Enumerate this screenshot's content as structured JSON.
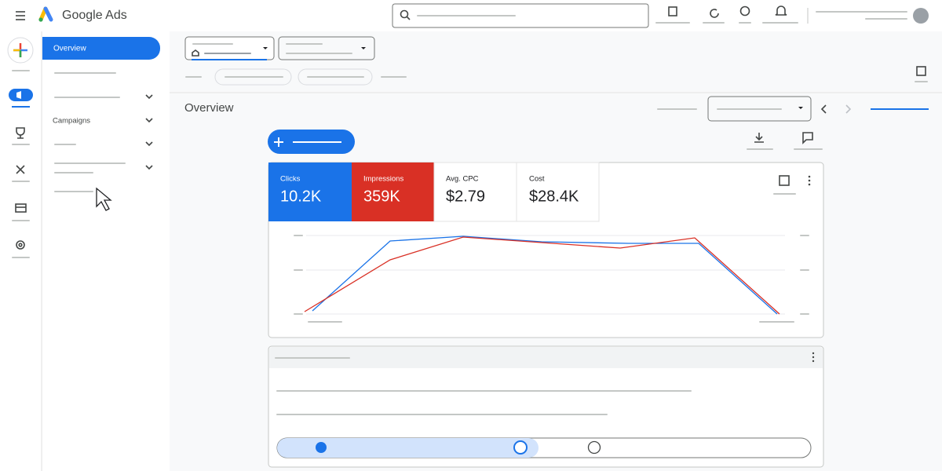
{
  "header": {
    "product": "Google Ads"
  },
  "nav": {
    "items": [
      "Overview",
      "Campaigns"
    ]
  },
  "page": {
    "title": "Overview"
  },
  "metrics": [
    {
      "label": "Clicks",
      "value": "10.2K"
    },
    {
      "label": "Impressions",
      "value": "359K"
    },
    {
      "label": "Avg. CPC",
      "value": "$2.79"
    },
    {
      "label": "Cost",
      "value": "$28.4K"
    }
  ]
}
